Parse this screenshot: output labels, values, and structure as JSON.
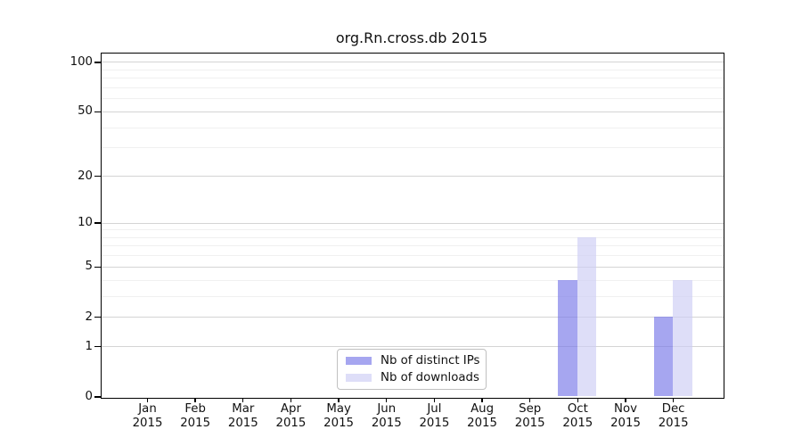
{
  "chart_data": {
    "type": "bar",
    "title": "org.Rn.cross.db 2015",
    "categories": [
      "Jan",
      "Feb",
      "Mar",
      "Apr",
      "May",
      "Jun",
      "Jul",
      "Aug",
      "Sep",
      "Oct",
      "Nov",
      "Dec"
    ],
    "category_year": "2015",
    "series": [
      {
        "name": "Nb of distinct IPs",
        "color": "rgba(122,122,233,0.67)",
        "values": [
          0,
          0,
          0,
          0,
          0,
          0,
          0,
          0,
          0,
          4,
          0,
          2
        ]
      },
      {
        "name": "Nb of downloads",
        "color": "rgba(206,206,245,0.67)",
        "values": [
          0,
          0,
          0,
          0,
          0,
          0,
          0,
          0,
          0,
          8,
          0,
          4
        ]
      }
    ],
    "yscale": "log1p",
    "ylim": [
      0,
      113
    ],
    "y_major_ticks": [
      0,
      1,
      2,
      5,
      10,
      20,
      50,
      100
    ],
    "y_minor_gridlines": [
      3,
      4,
      6,
      7,
      8,
      9,
      30,
      40,
      60,
      70,
      80,
      90
    ],
    "grid": "horizontal",
    "legend_position": "lower center"
  },
  "colors": {
    "major_grid": "#d4d4d4",
    "minor_grid": "#f0f0f0",
    "spine": "#000000",
    "text": "#111111",
    "background": "#ffffff"
  }
}
